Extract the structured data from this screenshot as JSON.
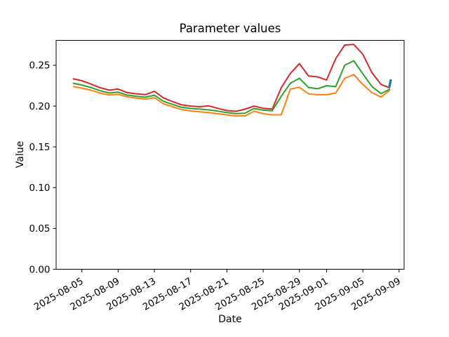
{
  "chart_data": {
    "type": "line",
    "title": "Parameter values",
    "xlabel": "Date",
    "ylabel": "Value",
    "grid": false,
    "legend": "none",
    "ylim": [
      0,
      0.2805
    ],
    "y_tick_values": [
      0,
      0.05,
      0.1,
      0.15,
      0.2,
      0.25
    ],
    "y_tick_labels": [
      "0.00",
      "0.05",
      "0.10",
      "0.15",
      "0.20",
      "0.25"
    ],
    "x_tick_labels": [
      "2025-08-05",
      "2025-08-09",
      "2025-08-13",
      "2025-08-17",
      "2025-08-21",
      "2025-08-25",
      "2025-08-29",
      "2025-09-01",
      "2025-09-05",
      "2025-09-09"
    ],
    "first_date": "2025-08-04",
    "xlim_days_offset": [
      -1.84,
      36.55
    ],
    "dates": [
      "2025-08-04",
      "2025-08-05",
      "2025-08-06",
      "2025-08-07",
      "2025-08-08",
      "2025-08-09",
      "2025-08-10",
      "2025-08-11",
      "2025-08-12",
      "2025-08-13",
      "2025-08-14",
      "2025-08-15",
      "2025-08-16",
      "2025-08-17",
      "2025-08-18",
      "2025-08-19",
      "2025-08-20",
      "2025-08-21",
      "2025-08-22",
      "2025-08-23",
      "2025-08-24",
      "2025-08-25",
      "2025-08-26",
      "2025-08-27",
      "2025-08-28",
      "2025-08-29",
      "2025-08-30",
      "2025-08-31",
      "2025-09-01",
      "2025-09-02",
      "2025-09-03",
      "2025-09-04",
      "2025-09-05",
      "2025-09-06",
      "2025-09-07",
      "2025-09-08"
    ],
    "series": [
      {
        "name": "red-line",
        "color": "#d62728",
        "values": [
          0.2335,
          0.231,
          0.227,
          0.2225,
          0.2195,
          0.2208,
          0.2165,
          0.215,
          0.214,
          0.218,
          0.21,
          0.2055,
          0.2015,
          0.2,
          0.1992,
          0.2002,
          0.1972,
          0.1945,
          0.1936,
          0.1962,
          0.2,
          0.1973,
          0.1963,
          0.2225,
          0.24,
          0.252,
          0.237,
          0.2358,
          0.232,
          0.258,
          0.2748,
          0.2755,
          0.2635,
          0.241,
          0.2265,
          0.2222
        ]
      },
      {
        "name": "green-line",
        "color": "#2ca02c",
        "values": [
          0.228,
          0.2258,
          0.2228,
          0.2188,
          0.216,
          0.217,
          0.2135,
          0.212,
          0.2108,
          0.2133,
          0.2058,
          0.202,
          0.1985,
          0.197,
          0.1963,
          0.1953,
          0.1938,
          0.192,
          0.1907,
          0.1913,
          0.197,
          0.195,
          0.1942,
          0.212,
          0.228,
          0.234,
          0.2228,
          0.2212,
          0.225,
          0.2238,
          0.25,
          0.2555,
          0.2395,
          0.224,
          0.2152,
          0.2208
        ]
      },
      {
        "name": "orange-line",
        "color": "#ff7f0e",
        "values": [
          0.224,
          0.2218,
          0.2195,
          0.216,
          0.2135,
          0.2143,
          0.2113,
          0.2098,
          0.2085,
          0.2103,
          0.2028,
          0.1992,
          0.1958,
          0.194,
          0.193,
          0.192,
          0.1906,
          0.1892,
          0.1879,
          0.1879,
          0.1936,
          0.1907,
          0.1893,
          0.1893,
          0.2209,
          0.2229,
          0.215,
          0.2138,
          0.214,
          0.216,
          0.234,
          0.2385,
          0.2265,
          0.2165,
          0.211,
          0.2195
        ]
      }
    ],
    "blue_marker": {
      "name": "blue-dash-marker",
      "color": "#1f77b4",
      "date": "2025-09-08",
      "value_low": 0.224,
      "value_high": 0.2315
    },
    "colors": {
      "spine": "#000000",
      "background": "#ffffff"
    }
  }
}
